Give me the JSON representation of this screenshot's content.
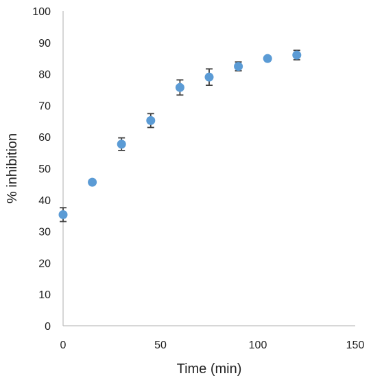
{
  "chart_data": {
    "type": "scatter",
    "title": "",
    "xlabel": "Time (min)",
    "ylabel": "% inhibition",
    "xlim": [
      0,
      150
    ],
    "ylim": [
      0,
      100
    ],
    "x_ticks": [
      0,
      50,
      100,
      150
    ],
    "y_ticks": [
      0,
      10,
      20,
      30,
      40,
      50,
      60,
      70,
      80,
      90,
      100
    ],
    "grid": false,
    "legend": "none",
    "marker_color": "#5b9bd5",
    "error_bar_color": "#404040",
    "series": [
      {
        "x": [
          0,
          15,
          30,
          45,
          60,
          75,
          90,
          105,
          120
        ],
        "y": [
          35.3,
          45.6,
          57.7,
          65.2,
          75.7,
          79.0,
          82.4,
          84.9,
          86.0
        ],
        "error": [
          2.2,
          0.4,
          2.0,
          2.2,
          2.4,
          2.6,
          1.4,
          0.3,
          1.5
        ]
      }
    ]
  }
}
